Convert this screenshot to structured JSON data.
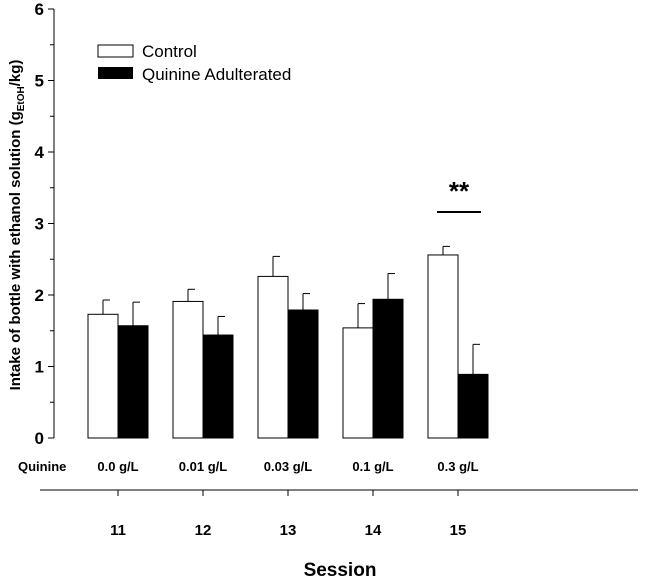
{
  "chart_data": {
    "type": "bar",
    "title": "",
    "ylabel": "Intake of bottle with ethanol solution (g",
    "ylabel_sub": "EtOH",
    "ylabel_end": "/kg)",
    "xlabel": "Session",
    "ylim": [
      0,
      6
    ],
    "yticks": [
      "0",
      "1",
      "2",
      "3",
      "4",
      "5",
      "6"
    ],
    "categories": [
      "11",
      "12",
      "13",
      "14",
      "15"
    ],
    "row_label": "Quinine",
    "quinine_doses": [
      "0.0 g/L",
      "0.01 g/L",
      "0.03 g/L",
      "0.1 g/L",
      "0.3 g/L"
    ],
    "legend_position": "top-left",
    "series": [
      {
        "name": "Control",
        "color": "#ffffff",
        "values": [
          1.73,
          1.91,
          2.26,
          1.54,
          2.56
        ],
        "errors": [
          0.2,
          0.17,
          0.28,
          0.34,
          0.12
        ]
      },
      {
        "name": "Quinine Adulterated",
        "color": "#000000",
        "values": [
          1.57,
          1.44,
          1.79,
          1.94,
          0.89
        ],
        "errors": [
          0.33,
          0.26,
          0.23,
          0.36,
          0.42
        ]
      }
    ],
    "annotations": [
      {
        "text": "**",
        "category": "15"
      }
    ]
  }
}
